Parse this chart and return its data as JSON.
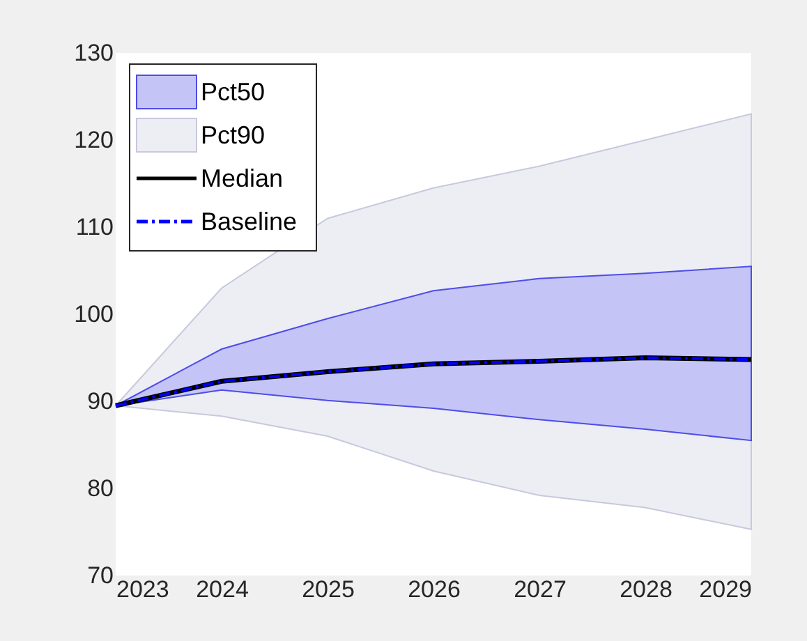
{
  "chart_data": {
    "type": "line",
    "x": [
      2023,
      2024,
      2025,
      2026,
      2027,
      2028,
      2029
    ],
    "xlim": [
      2023,
      2029
    ],
    "xticks": [
      2023,
      2024,
      2025,
      2026,
      2027,
      2028,
      2029
    ],
    "ylim": [
      70,
      130
    ],
    "yticks": [
      70,
      80,
      90,
      100,
      110,
      120,
      130
    ],
    "legend": "top left",
    "series": [
      {
        "name": "Pct50",
        "color": "#4d4de8",
        "values": [
          null,
          null,
          null,
          null,
          null,
          null,
          null
        ],
        "lower": [
          89.5,
          91.3,
          90.1,
          89.2,
          87.9,
          86.8,
          85.5
        ],
        "upper": [
          89.5,
          96,
          99.5,
          102.7,
          104.1,
          104.7,
          105.5
        ]
      },
      {
        "name": "Pct90",
        "color": "#c8c8de",
        "values": [
          null,
          null,
          null,
          null,
          null,
          null,
          null
        ],
        "lower": [
          89.5,
          88.3,
          86,
          82,
          79.2,
          77.8,
          75.3
        ],
        "upper": [
          89.5,
          103,
          111,
          114.5,
          117,
          120,
          123
        ]
      },
      {
        "name": "Median",
        "color": "#000000",
        "line_style": "solid",
        "values": [
          89.5,
          92.3,
          93.4,
          94.3,
          94.6,
          95,
          94.8
        ]
      },
      {
        "name": "Baseline",
        "color": "#0000ff",
        "line_style": "dashed",
        "values": [
          89.5,
          92.3,
          93.4,
          94.3,
          94.6,
          95,
          94.8
        ]
      }
    ]
  }
}
